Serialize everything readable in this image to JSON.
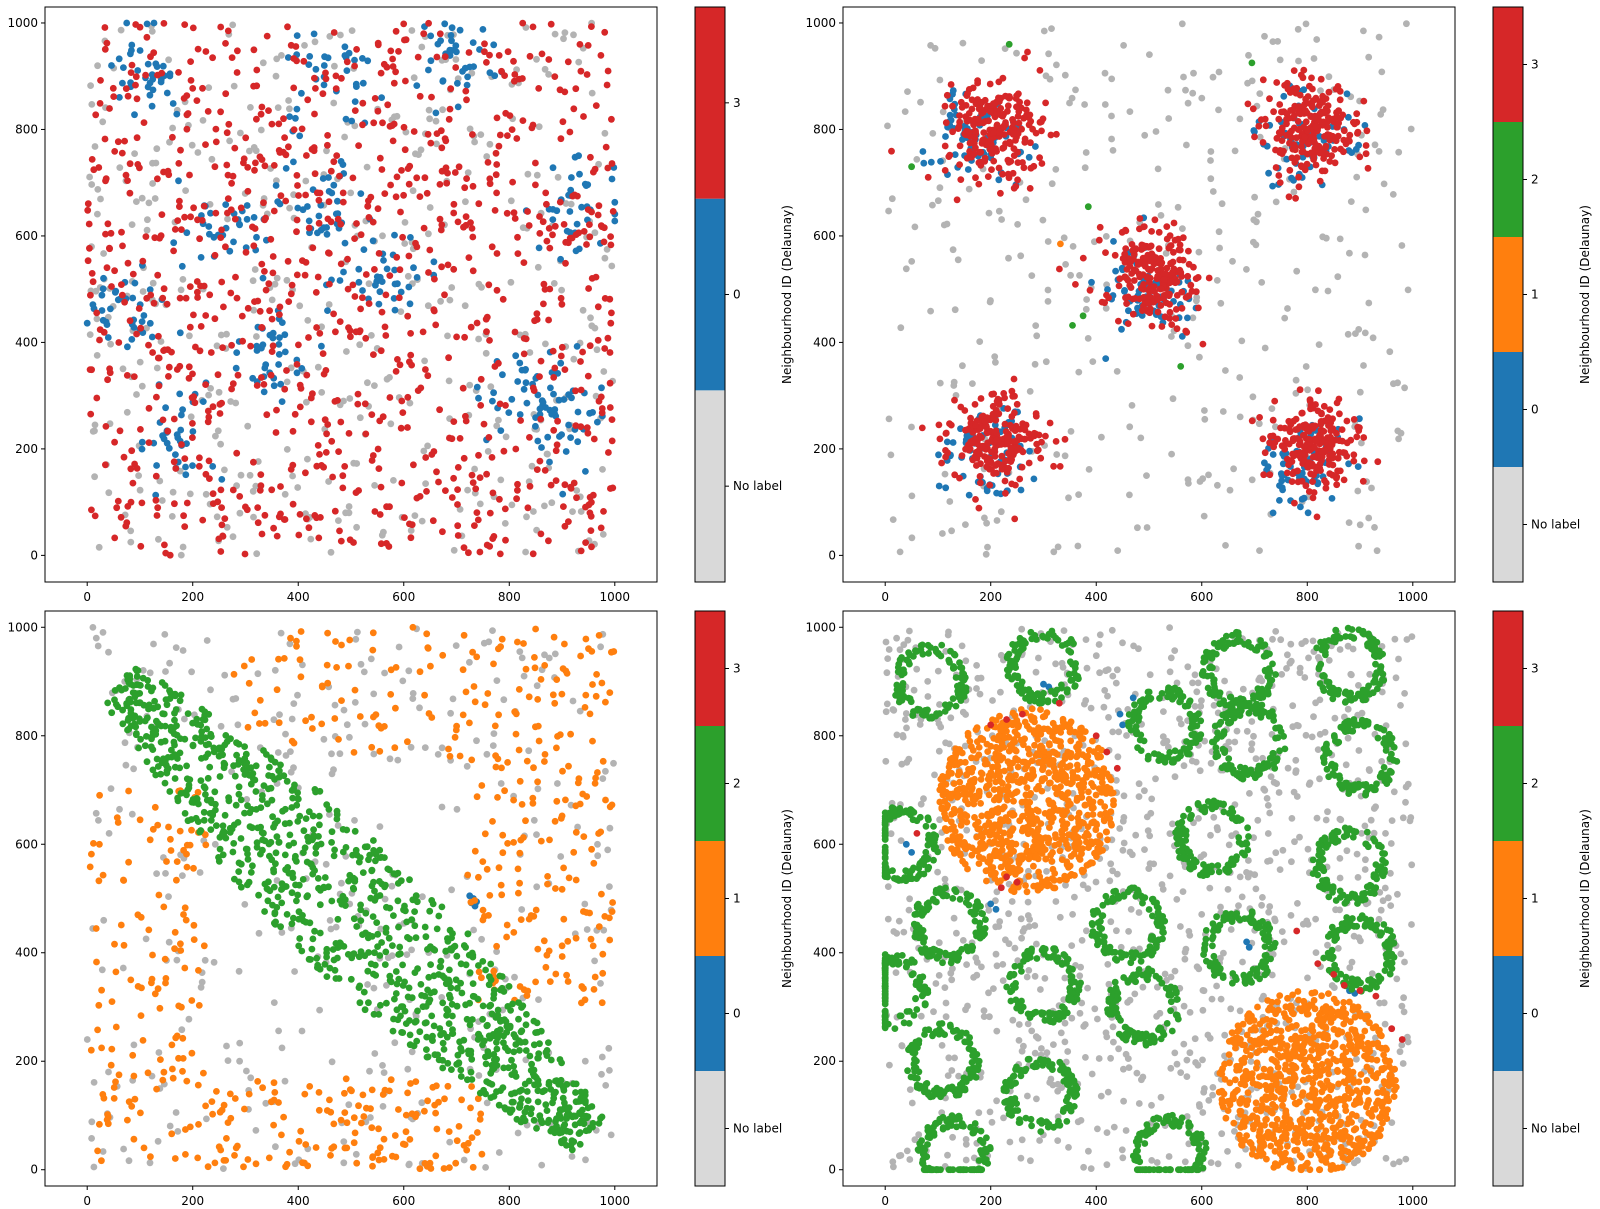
{
  "colors": {
    "no_label": "#b3b3b3",
    "no_label_bar": "#d9d9d9",
    "n0": "#1f77b4",
    "n1": "#ff7f0e",
    "n2": "#2ca02c",
    "n3": "#d62728"
  },
  "chart_data": [
    {
      "type": "scatter",
      "title": "",
      "xlim": [
        -80,
        1080
      ],
      "ylim": [
        -50,
        1030
      ],
      "x_ticks": [
        0,
        200,
        400,
        600,
        800,
        1000
      ],
      "y_ticks": [
        0,
        200,
        400,
        600,
        800,
        1000
      ],
      "colorbar": {
        "label": "Neighbourhood ID (Delaunay)",
        "categories": [
          {
            "label": "No label",
            "color": "#d9d9d9"
          },
          {
            "label": "0",
            "color": "#1f77b4"
          },
          {
            "label": "3",
            "color": "#d62728"
          }
        ]
      },
      "series": [
        {
          "name": "No label",
          "color": "#b3b3b3",
          "pattern": "uniform",
          "region": [
            0,
            1000,
            0,
            1000
          ],
          "count": 420
        },
        {
          "name": "0",
          "color": "#1f77b4",
          "pattern": "blobs",
          "count": 440,
          "centers": [
            [
              110,
              900
            ],
            [
              460,
              880
            ],
            [
              360,
              380
            ],
            [
              170,
              230
            ],
            [
              560,
              520
            ],
            [
              840,
              320
            ],
            [
              930,
              650
            ],
            [
              260,
              620
            ],
            [
              700,
              940
            ],
            [
              440,
              650
            ],
            [
              80,
              460
            ],
            [
              900,
              250
            ]
          ]
        },
        {
          "name": "3",
          "color": "#d62728",
          "pattern": "uniform",
          "region": [
            0,
            1000,
            0,
            1000
          ],
          "count": 980
        }
      ]
    },
    {
      "type": "scatter",
      "title": "",
      "xlim": [
        -80,
        1080
      ],
      "ylim": [
        -50,
        1030
      ],
      "x_ticks": [
        0,
        200,
        400,
        600,
        800,
        1000
      ],
      "y_ticks": [
        0,
        200,
        400,
        600,
        800,
        1000
      ],
      "colorbar": {
        "label": "Neighbourhood ID (Delaunay)",
        "categories": [
          {
            "label": "No label",
            "color": "#d9d9d9"
          },
          {
            "label": "0",
            "color": "#1f77b4"
          },
          {
            "label": "1",
            "color": "#ff7f0e"
          },
          {
            "label": "2",
            "color": "#2ca02c"
          },
          {
            "label": "3",
            "color": "#d62728"
          }
        ]
      },
      "series": [
        {
          "name": "No label",
          "color": "#b3b3b3",
          "pattern": "uniform",
          "region": [
            0,
            1000,
            0,
            1000
          ],
          "count": 330
        },
        {
          "name": "0",
          "color": "#1f77b4",
          "pattern": "blobs",
          "count": 330,
          "centers": [
            [
              175,
              790
            ],
            [
              800,
              780
            ],
            [
              490,
              490
            ],
            [
              190,
              180
            ],
            [
              790,
              170
            ]
          ]
        },
        {
          "name": "1",
          "color": "#ff7f0e",
          "pattern": "points",
          "points": [
            [
              332,
              585
            ]
          ]
        },
        {
          "name": "2",
          "color": "#2ca02c",
          "pattern": "points",
          "points": [
            [
              235,
              960
            ],
            [
              695,
              925
            ],
            [
              50,
              730
            ],
            [
              385,
              655
            ],
            [
              355,
              432
            ],
            [
              375,
              450
            ],
            [
              560,
              355
            ]
          ]
        },
        {
          "name": "3",
          "color": "#d62728",
          "pattern": "blobs",
          "count": 1120,
          "centers": [
            [
              210,
              800
            ],
            [
              800,
              800
            ],
            [
              510,
              520
            ],
            [
              210,
              220
            ],
            [
              810,
              210
            ]
          ]
        }
      ]
    },
    {
      "type": "scatter",
      "title": "",
      "xlim": [
        -80,
        1080
      ],
      "ylim": [
        -30,
        1030
      ],
      "x_ticks": [
        0,
        200,
        400,
        600,
        800,
        1000
      ],
      "y_ticks": [
        0,
        200,
        400,
        600,
        800,
        1000
      ],
      "colorbar": {
        "label": "Neighbourhood ID (Delaunay)",
        "categories": [
          {
            "label": "No label",
            "color": "#d9d9d9"
          },
          {
            "label": "0",
            "color": "#1f77b4"
          },
          {
            "label": "1",
            "color": "#ff7f0e"
          },
          {
            "label": "2",
            "color": "#2ca02c"
          },
          {
            "label": "3",
            "color": "#d62728"
          }
        ]
      },
      "series": [
        {
          "name": "No label",
          "color": "#b3b3b3",
          "pattern": "uniform",
          "region": [
            0,
            1000,
            0,
            1000
          ],
          "count": 360
        },
        {
          "name": "0",
          "color": "#1f77b4",
          "pattern": "points",
          "points": [
            [
              725,
              505
            ],
            [
              732,
              500
            ],
            [
              738,
              494
            ],
            [
              728,
              492
            ],
            [
              735,
              486
            ]
          ]
        },
        {
          "name": "1",
          "color": "#ff7f0e",
          "pattern": "regions",
          "count": 560,
          "regions": [
            [
              0,
              230,
              0,
              700
            ],
            [
              230,
              750,
              0,
              170
            ],
            [
              270,
              1000,
              760,
              1000
            ],
            [
              720,
              1000,
              300,
              760
            ]
          ]
        },
        {
          "name": "2",
          "color": "#2ca02c",
          "pattern": "diagonal",
          "count": 1050,
          "start": [
            60,
            900
          ],
          "end": [
            950,
            60
          ],
          "width": 180
        },
        {
          "name": "3",
          "color": "#d62728",
          "pattern": "points",
          "points": []
        }
      ]
    },
    {
      "type": "scatter",
      "title": "",
      "xlim": [
        -80,
        1080
      ],
      "ylim": [
        -30,
        1030
      ],
      "x_ticks": [
        0,
        200,
        400,
        600,
        800,
        1000
      ],
      "y_ticks": [
        0,
        200,
        400,
        600,
        800,
        1000
      ],
      "colorbar": {
        "label": "Neighbourhood ID (Delaunay)",
        "categories": [
          {
            "label": "No label",
            "color": "#d9d9d9"
          },
          {
            "label": "0",
            "color": "#1f77b4"
          },
          {
            "label": "1",
            "color": "#ff7f0e"
          },
          {
            "label": "2",
            "color": "#2ca02c"
          },
          {
            "label": "3",
            "color": "#d62728"
          }
        ]
      },
      "series": [
        {
          "name": "No label",
          "color": "#b3b3b3",
          "pattern": "uniform",
          "region": [
            0,
            1000,
            0,
            1000
          ],
          "count": 1100
        },
        {
          "name": "0",
          "color": "#1f77b4",
          "pattern": "points",
          "points": [
            [
              300,
              895
            ],
            [
              310,
              890
            ],
            [
              445,
              840
            ],
            [
              450,
              820
            ],
            [
              200,
              490
            ],
            [
              210,
              480
            ],
            [
              40,
              600
            ],
            [
              50,
              585
            ],
            [
              685,
              420
            ],
            [
              690,
              410
            ],
            [
              880,
              330
            ],
            [
              890,
              325
            ],
            [
              470,
              870
            ]
          ]
        },
        {
          "name": "1",
          "color": "#ff7f0e",
          "pattern": "discs",
          "count": 1700,
          "discs": [
            [
              270,
              680,
              170
            ],
            [
              800,
              160,
              170
            ]
          ]
        },
        {
          "name": "2",
          "color": "#2ca02c",
          "pattern": "rings",
          "count": 2400,
          "rings": [
            [
              85,
              900
            ],
            [
              300,
              930
            ],
            [
              530,
              820
            ],
            [
              670,
              920
            ],
            [
              880,
              930
            ],
            [
              690,
              790
            ],
            [
              900,
              760
            ],
            [
              620,
              610
            ],
            [
              880,
              560
            ],
            [
              460,
              450
            ],
            [
              670,
              410
            ],
            [
              900,
              400
            ],
            [
              120,
              450
            ],
            [
              300,
              340
            ],
            [
              490,
              300
            ],
            [
              110,
              200
            ],
            [
              295,
              140
            ],
            [
              540,
              30
            ],
            [
              130,
              30
            ],
            [
              10,
              330
            ],
            [
              30,
              600
            ]
          ]
        },
        {
          "name": "3",
          "color": "#d62728",
          "pattern": "points",
          "points": [
            [
              200,
              820
            ],
            [
              230,
              830
            ],
            [
              260,
              840
            ],
            [
              330,
              860
            ],
            [
              400,
              800
            ],
            [
              420,
              770
            ],
            [
              440,
              740
            ],
            [
              230,
              540
            ],
            [
              220,
              520
            ],
            [
              250,
              530
            ],
            [
              60,
              620
            ],
            [
              850,
              360
            ],
            [
              870,
              340
            ],
            [
              900,
              330
            ],
            [
              930,
              320
            ],
            [
              820,
              380
            ],
            [
              960,
              260
            ],
            [
              980,
              240
            ],
            [
              780,
              440
            ]
          ]
        }
      ]
    }
  ]
}
